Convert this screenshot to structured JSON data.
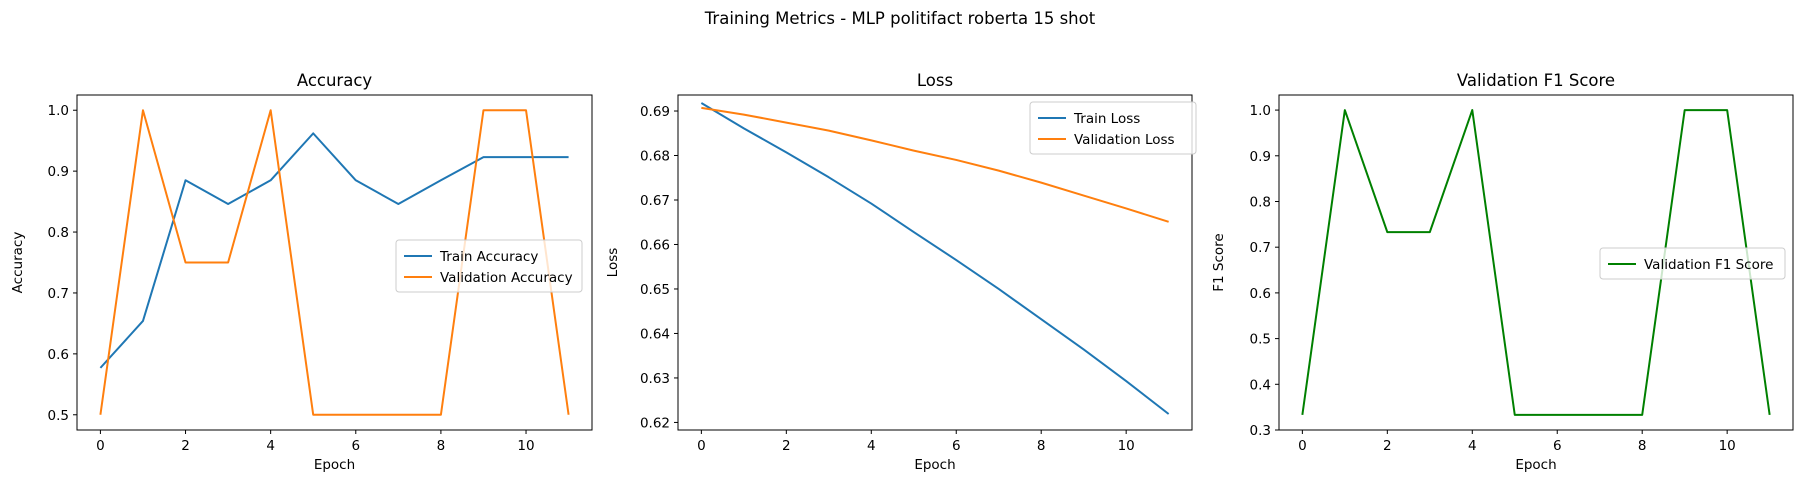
{
  "suptitle": "Training Metrics - MLP politifact roberta 15 shot",
  "colors": {
    "train": "#1f77b4",
    "validation": "#ff7f0e",
    "f1": "#008000",
    "axis": "#000000"
  },
  "chart_data": [
    {
      "type": "line",
      "title": "Accuracy",
      "xlabel": "Epoch",
      "ylabel": "Accuracy",
      "xlim": [
        -0.55,
        11.55
      ],
      "ylim": [
        0.475,
        1.025
      ],
      "xticks": [
        0,
        2,
        4,
        6,
        8,
        10
      ],
      "xtick_labels": [
        "0",
        "2",
        "4",
        "6",
        "8",
        "10"
      ],
      "yticks": [
        0.5,
        0.6,
        0.7,
        0.8,
        0.9,
        1.0
      ],
      "ytick_labels": [
        "0.5",
        "0.6",
        "0.7",
        "0.8",
        "0.9",
        "1.0"
      ],
      "legend_position": "center-right",
      "grid": false,
      "x": [
        0,
        1,
        2,
        3,
        4,
        5,
        6,
        7,
        8,
        9,
        10,
        11
      ],
      "series": [
        {
          "name": "Train Accuracy",
          "color": "#1f77b4",
          "values": [
            0.577,
            0.654,
            0.885,
            0.846,
            0.885,
            0.962,
            0.885,
            0.846,
            0.885,
            0.923,
            0.923,
            0.923
          ]
        },
        {
          "name": "Validation Accuracy",
          "color": "#ff7f0e",
          "values": [
            0.5,
            1.0,
            0.75,
            0.75,
            1.0,
            0.5,
            0.5,
            0.5,
            0.5,
            1.0,
            1.0,
            0.5
          ]
        }
      ]
    },
    {
      "type": "line",
      "title": "Loss",
      "xlabel": "Epoch",
      "ylabel": "Loss",
      "xlim": [
        -0.55,
        11.55
      ],
      "ylim": [
        0.6183,
        0.6936
      ],
      "xticks": [
        0,
        2,
        4,
        6,
        8,
        10
      ],
      "xtick_labels": [
        "0",
        "2",
        "4",
        "6",
        "8",
        "10"
      ],
      "yticks": [
        0.62,
        0.63,
        0.64,
        0.65,
        0.66,
        0.67,
        0.68,
        0.69
      ],
      "ytick_labels": [
        "0.62",
        "0.63",
        "0.64",
        "0.65",
        "0.66",
        "0.67",
        "0.68",
        "0.69"
      ],
      "legend_position": "upper-right",
      "grid": false,
      "x": [
        0,
        1,
        2,
        3,
        4,
        5,
        6,
        7,
        8,
        9,
        10,
        11
      ],
      "series": [
        {
          "name": "Train Loss",
          "color": "#1f77b4",
          "values": [
            0.6918,
            0.6861,
            0.6807,
            0.6751,
            0.6692,
            0.6628,
            0.6565,
            0.65,
            0.6432,
            0.6364,
            0.6293,
            0.6219
          ]
        },
        {
          "name": "Validation Loss",
          "color": "#ff7f0e",
          "values": [
            0.6907,
            0.6892,
            0.6874,
            0.6856,
            0.6834,
            0.6811,
            0.679,
            0.6766,
            0.6739,
            0.671,
            0.6681,
            0.6651
          ]
        }
      ]
    },
    {
      "type": "line",
      "title": "Validation F1 Score",
      "xlabel": "Epoch",
      "ylabel": "F1 Score",
      "xlim": [
        -0.55,
        11.55
      ],
      "ylim": [
        0.3,
        1.033
      ],
      "xticks": [
        0,
        2,
        4,
        6,
        8,
        10
      ],
      "xtick_labels": [
        "0",
        "2",
        "4",
        "6",
        "8",
        "10"
      ],
      "yticks": [
        0.3,
        0.4,
        0.5,
        0.6,
        0.7,
        0.8,
        0.9,
        1.0
      ],
      "ytick_labels": [
        "0.3",
        "0.4",
        "0.5",
        "0.6",
        "0.7",
        "0.8",
        "0.9",
        "1.0"
      ],
      "legend_position": "center-right",
      "grid": false,
      "x": [
        0,
        1,
        2,
        3,
        4,
        5,
        6,
        7,
        8,
        9,
        10,
        11
      ],
      "series": [
        {
          "name": "Validation F1 Score",
          "color": "#008000",
          "values": [
            0.333,
            1.0,
            0.733,
            0.733,
            1.0,
            0.333,
            0.333,
            0.333,
            0.333,
            1.0,
            1.0,
            0.333
          ]
        }
      ]
    }
  ]
}
